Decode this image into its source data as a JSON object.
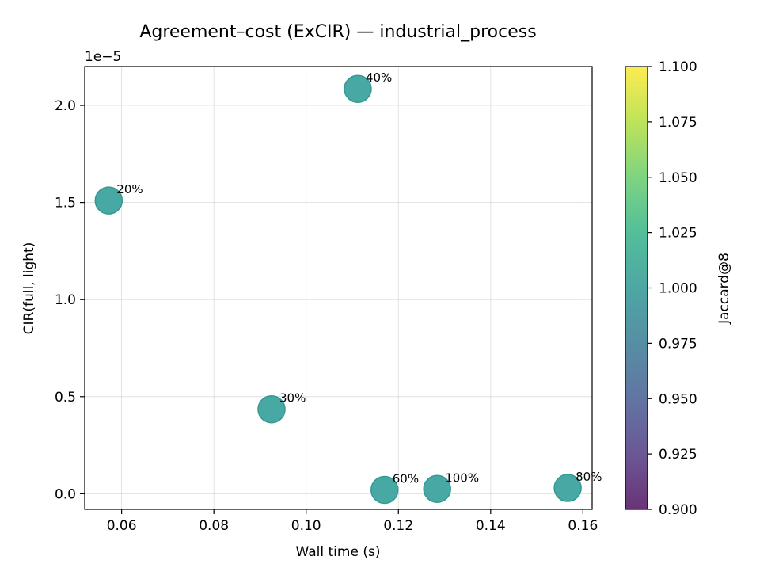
{
  "chart_data": {
    "type": "scatter",
    "title": "Agreement–cost (ExCIR) — industrial_process",
    "xlabel": "Wall time (s)",
    "ylabel": "CIR(full, light)",
    "y_offset_label": "1e−5",
    "xlim": [
      0.052,
      0.162
    ],
    "ylim": [
      -0.08,
      2.2
    ],
    "x_ticks": [
      0.06,
      0.08,
      0.1,
      0.12,
      0.14,
      0.16
    ],
    "x_tick_labels": [
      "0.06",
      "0.08",
      "0.10",
      "0.12",
      "0.14",
      "0.16"
    ],
    "y_ticks": [
      0.0,
      0.5,
      1.0,
      1.5,
      2.0
    ],
    "y_tick_labels": [
      "0.0",
      "0.5",
      "1.0",
      "1.5",
      "2.0"
    ],
    "grid": true,
    "point_color": "#35a09b",
    "points": [
      {
        "label": "20%",
        "x": 0.0572,
        "y": 1.51
      },
      {
        "label": "30%",
        "x": 0.0925,
        "y": 0.435
      },
      {
        "label": "40%",
        "x": 0.1112,
        "y": 2.085
      },
      {
        "label": "60%",
        "x": 0.117,
        "y": 0.02
      },
      {
        "label": "100%",
        "x": 0.1284,
        "y": 0.025
      },
      {
        "label": "80%",
        "x": 0.1567,
        "y": 0.03
      }
    ],
    "colorbar": {
      "label": "Jaccard@8",
      "range": [
        0.9,
        1.1
      ],
      "ticks": [
        0.9,
        0.925,
        0.95,
        0.975,
        1.0,
        1.025,
        1.05,
        1.075,
        1.1
      ],
      "tick_labels": [
        "0.900",
        "0.925",
        "0.950",
        "0.975",
        "1.000",
        "1.025",
        "1.050",
        "1.075",
        "1.100"
      ],
      "colormap": "viridis"
    }
  }
}
